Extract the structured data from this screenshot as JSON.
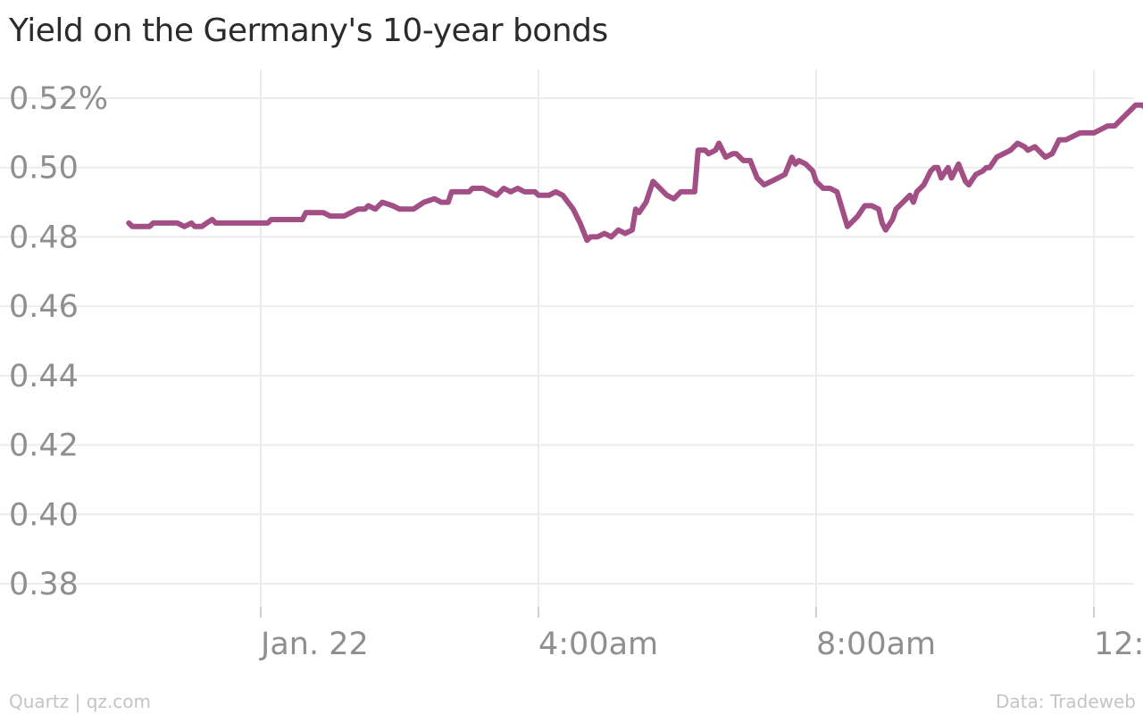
{
  "title": "Yield on the Germany's 10-year bonds",
  "footer": {
    "left": "Quartz | qz.com",
    "right": "Data: Tradeweb"
  },
  "chart_data": {
    "type": "line",
    "title": "Yield on the Germany's 10-year bonds",
    "xlabel": "",
    "ylabel": "",
    "x_unit": "hours since Jan. 22 0:00",
    "xlim": [
      -3.75,
      14.0
    ],
    "ylim": [
      0.372,
      0.528
    ],
    "yticks": [
      0.38,
      0.4,
      0.42,
      0.44,
      0.46,
      0.48,
      0.5,
      0.52
    ],
    "ytick_labels": [
      "0.38",
      "0.40",
      "0.42",
      "0.44",
      "0.46",
      "0.48",
      "0.50",
      "0.52%"
    ],
    "xticks": [
      0,
      4,
      8,
      12
    ],
    "xtick_labels": [
      "Jan. 22",
      "4:00am",
      "8:00am",
      "12:00pm"
    ],
    "grid": true,
    "color": "#a24f86",
    "series": [
      {
        "values": [
          [
            -1.9,
            0.484
          ],
          [
            -1.85,
            0.483
          ],
          [
            -1.6,
            0.483
          ],
          [
            -1.55,
            0.484
          ],
          [
            -1.2,
            0.484
          ],
          [
            -1.1,
            0.483
          ],
          [
            -1.0,
            0.484
          ],
          [
            -0.95,
            0.483
          ],
          [
            -0.85,
            0.483
          ],
          [
            -0.78,
            0.484
          ],
          [
            -0.7,
            0.485
          ],
          [
            -0.65,
            0.484
          ],
          [
            -0.4,
            0.484
          ],
          [
            -0.1,
            0.484
          ],
          [
            0.1,
            0.484
          ],
          [
            0.15,
            0.485
          ],
          [
            0.35,
            0.485
          ],
          [
            0.6,
            0.485
          ],
          [
            0.65,
            0.487
          ],
          [
            0.9,
            0.487
          ],
          [
            1.0,
            0.486
          ],
          [
            1.2,
            0.486
          ],
          [
            1.3,
            0.487
          ],
          [
            1.4,
            0.488
          ],
          [
            1.5,
            0.488
          ],
          [
            1.55,
            0.489
          ],
          [
            1.65,
            0.488
          ],
          [
            1.75,
            0.49
          ],
          [
            1.9,
            0.489
          ],
          [
            2.0,
            0.488
          ],
          [
            2.2,
            0.488
          ],
          [
            2.35,
            0.49
          ],
          [
            2.5,
            0.491
          ],
          [
            2.6,
            0.49
          ],
          [
            2.7,
            0.49
          ],
          [
            2.75,
            0.493
          ],
          [
            3.0,
            0.493
          ],
          [
            3.05,
            0.494
          ],
          [
            3.2,
            0.494
          ],
          [
            3.3,
            0.493
          ],
          [
            3.4,
            0.492
          ],
          [
            3.5,
            0.494
          ],
          [
            3.6,
            0.493
          ],
          [
            3.7,
            0.494
          ],
          [
            3.8,
            0.493
          ],
          [
            3.95,
            0.493
          ],
          [
            4.0,
            0.492
          ],
          [
            4.15,
            0.492
          ],
          [
            4.25,
            0.493
          ],
          [
            4.35,
            0.492
          ],
          [
            4.5,
            0.488
          ],
          [
            4.6,
            0.484
          ],
          [
            4.7,
            0.479
          ],
          [
            4.75,
            0.48
          ],
          [
            4.85,
            0.48
          ],
          [
            4.95,
            0.481
          ],
          [
            5.05,
            0.48
          ],
          [
            5.15,
            0.482
          ],
          [
            5.25,
            0.481
          ],
          [
            5.35,
            0.482
          ],
          [
            5.4,
            0.488
          ],
          [
            5.45,
            0.487
          ],
          [
            5.55,
            0.49
          ],
          [
            5.65,
            0.496
          ],
          [
            5.75,
            0.494
          ],
          [
            5.85,
            0.492
          ],
          [
            5.95,
            0.491
          ],
          [
            6.05,
            0.493
          ],
          [
            6.15,
            0.493
          ],
          [
            6.25,
            0.493
          ],
          [
            6.3,
            0.505
          ],
          [
            6.4,
            0.505
          ],
          [
            6.45,
            0.504
          ],
          [
            6.55,
            0.505
          ],
          [
            6.6,
            0.507
          ],
          [
            6.7,
            0.503
          ],
          [
            6.8,
            0.504
          ],
          [
            6.85,
            0.504
          ],
          [
            6.95,
            0.502
          ],
          [
            7.05,
            0.502
          ],
          [
            7.15,
            0.497
          ],
          [
            7.25,
            0.495
          ],
          [
            7.35,
            0.496
          ],
          [
            7.45,
            0.497
          ],
          [
            7.55,
            0.498
          ],
          [
            7.65,
            0.503
          ],
          [
            7.7,
            0.501
          ],
          [
            7.75,
            0.502
          ],
          [
            7.85,
            0.501
          ],
          [
            7.95,
            0.499
          ],
          [
            8.0,
            0.496
          ],
          [
            8.1,
            0.494
          ],
          [
            8.2,
            0.494
          ],
          [
            8.3,
            0.493
          ],
          [
            8.45,
            0.483
          ],
          [
            8.55,
            0.485
          ],
          [
            8.6,
            0.486
          ],
          [
            8.7,
            0.489
          ],
          [
            8.8,
            0.489
          ],
          [
            8.9,
            0.488
          ],
          [
            8.95,
            0.484
          ],
          [
            9.0,
            0.482
          ],
          [
            9.1,
            0.485
          ],
          [
            9.15,
            0.488
          ],
          [
            9.25,
            0.49
          ],
          [
            9.35,
            0.492
          ],
          [
            9.4,
            0.49
          ],
          [
            9.45,
            0.493
          ],
          [
            9.55,
            0.495
          ],
          [
            9.65,
            0.499
          ],
          [
            9.7,
            0.5
          ],
          [
            9.75,
            0.5
          ],
          [
            9.8,
            0.497
          ],
          [
            9.9,
            0.5
          ],
          [
            9.95,
            0.497
          ],
          [
            10.0,
            0.499
          ],
          [
            10.05,
            0.501
          ],
          [
            10.15,
            0.496
          ],
          [
            10.2,
            0.495
          ],
          [
            10.3,
            0.498
          ],
          [
            10.4,
            0.499
          ],
          [
            10.45,
            0.5
          ],
          [
            10.5,
            0.5
          ],
          [
            10.6,
            0.503
          ],
          [
            10.7,
            0.504
          ],
          [
            10.8,
            0.505
          ],
          [
            10.9,
            0.507
          ],
          [
            11.0,
            0.506
          ],
          [
            11.05,
            0.505
          ],
          [
            11.15,
            0.506
          ],
          [
            11.2,
            0.505
          ],
          [
            11.3,
            0.503
          ],
          [
            11.4,
            0.504
          ],
          [
            11.5,
            0.508
          ],
          [
            11.6,
            0.508
          ],
          [
            11.7,
            0.509
          ],
          [
            11.8,
            0.51
          ],
          [
            11.9,
            0.51
          ],
          [
            12.0,
            0.51
          ],
          [
            12.1,
            0.511
          ],
          [
            12.2,
            0.512
          ],
          [
            12.3,
            0.512
          ],
          [
            12.4,
            0.514
          ],
          [
            12.5,
            0.516
          ],
          [
            12.6,
            0.518
          ],
          [
            12.7,
            0.518
          ],
          [
            12.8,
            0.516
          ],
          [
            12.9,
            0.514
          ],
          [
            13.0,
            0.513
          ],
          [
            13.1,
            0.511
          ],
          [
            13.2,
            0.513
          ],
          [
            13.3,
            0.515
          ],
          [
            13.4,
            0.514
          ],
          [
            13.5,
            0.511
          ],
          [
            13.6,
            0.514
          ],
          [
            13.7,
            0.515
          ],
          [
            13.8,
            0.514
          ],
          [
            13.9,
            0.515
          ],
          [
            14.0,
            0.52
          ]
        ]
      }
    ]
  }
}
